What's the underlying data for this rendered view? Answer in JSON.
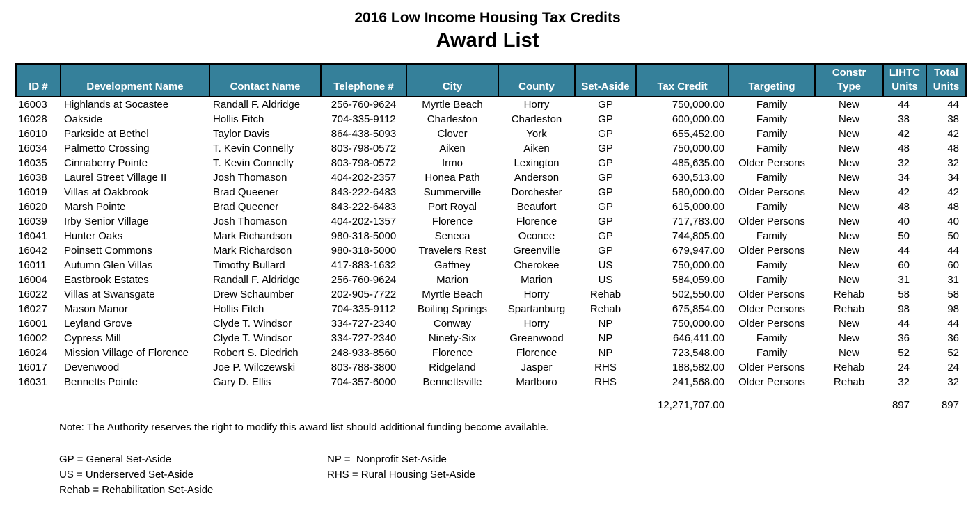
{
  "header": {
    "title": "2016 Low Income Housing Tax Credits",
    "subtitle": "Award List"
  },
  "colors": {
    "header_bg": "#35809A",
    "header_text": "#FFFFFF",
    "body_text": "#000000"
  },
  "table": {
    "columns": [
      {
        "key": "id",
        "label": "ID #"
      },
      {
        "key": "development_name",
        "label": "Development Name"
      },
      {
        "key": "contact_name",
        "label": "Contact Name"
      },
      {
        "key": "telephone",
        "label": "Telephone #"
      },
      {
        "key": "city",
        "label": "City"
      },
      {
        "key": "county",
        "label": "County"
      },
      {
        "key": "set_aside",
        "label": "Set-Aside"
      },
      {
        "key": "tax_credit",
        "label": "Tax Credit"
      },
      {
        "key": "targeting",
        "label": "Targeting"
      },
      {
        "key": "constr_type",
        "label": "Constr\nType"
      },
      {
        "key": "lihtc_units",
        "label": "LIHTC\nUnits"
      },
      {
        "key": "total_units",
        "label": "Total\nUnits"
      }
    ],
    "rows": [
      [
        "16003",
        "Highlands at Socastee",
        "Randall F. Aldridge",
        "256-760-9624",
        "Myrtle Beach",
        "Horry",
        "GP",
        "750,000.00",
        "Family",
        "New",
        "44",
        "44"
      ],
      [
        "16028",
        "Oakside",
        "Hollis Fitch",
        "704-335-9112",
        "Charleston",
        "Charleston",
        "GP",
        "600,000.00",
        "Family",
        "New",
        "38",
        "38"
      ],
      [
        "16010",
        "Parkside at Bethel",
        "Taylor Davis",
        "864-438-5093",
        "Clover",
        "York",
        "GP",
        "655,452.00",
        "Family",
        "New",
        "42",
        "42"
      ],
      [
        "16034",
        "Palmetto Crossing",
        "T. Kevin Connelly",
        "803-798-0572",
        "Aiken",
        "Aiken",
        "GP",
        "750,000.00",
        "Family",
        "New",
        "48",
        "48"
      ],
      [
        "16035",
        "Cinnaberry Pointe",
        "T. Kevin Connelly",
        "803-798-0572",
        "Irmo",
        "Lexington",
        "GP",
        "485,635.00",
        "Older Persons",
        "New",
        "32",
        "32"
      ],
      [
        "16038",
        "Laurel Street Village II",
        "Josh Thomason",
        "404-202-2357",
        "Honea Path",
        "Anderson",
        "GP",
        "630,513.00",
        "Family",
        "New",
        "34",
        "34"
      ],
      [
        "16019",
        "Villas at Oakbrook",
        "Brad Queener",
        "843-222-6483",
        "Summerville",
        "Dorchester",
        "GP",
        "580,000.00",
        "Older Persons",
        "New",
        "42",
        "42"
      ],
      [
        "16020",
        "Marsh Pointe",
        "Brad Queener",
        "843-222-6483",
        "Port Royal",
        "Beaufort",
        "GP",
        "615,000.00",
        "Family",
        "New",
        "48",
        "48"
      ],
      [
        "16039",
        "Irby Senior Village",
        "Josh Thomason",
        "404-202-1357",
        "Florence",
        "Florence",
        "GP",
        "717,783.00",
        "Older Persons",
        "New",
        "40",
        "40"
      ],
      [
        "16041",
        "Hunter Oaks",
        "Mark Richardson",
        "980-318-5000",
        "Seneca",
        "Oconee",
        "GP",
        "744,805.00",
        "Family",
        "New",
        "50",
        "50"
      ],
      [
        "16042",
        "Poinsett Commons",
        "Mark Richardson",
        "980-318-5000",
        "Travelers Rest",
        "Greenville",
        "GP",
        "679,947.00",
        "Older Persons",
        "New",
        "44",
        "44"
      ],
      [
        "16011",
        "Autumn Glen Villas",
        "Timothy Bullard",
        "417-883-1632",
        "Gaffney",
        "Cherokee",
        "US",
        "750,000.00",
        "Family",
        "New",
        "60",
        "60"
      ],
      [
        "16004",
        "Eastbrook Estates",
        "Randall F. Aldridge",
        "256-760-9624",
        "Marion",
        "Marion",
        "US",
        "584,059.00",
        "Family",
        "New",
        "31",
        "31"
      ],
      [
        "16022",
        "Villas at Swansgate",
        "Drew Schaumber",
        "202-905-7722",
        "Myrtle Beach",
        "Horry",
        "Rehab",
        "502,550.00",
        "Older Persons",
        "Rehab",
        "58",
        "58"
      ],
      [
        "16027",
        "Mason Manor",
        "Hollis Fitch",
        "704-335-9112",
        "Boiling Springs",
        "Spartanburg",
        "Rehab",
        "675,854.00",
        "Older Persons",
        "Rehab",
        "98",
        "98"
      ],
      [
        "16001",
        "Leyland Grove",
        "Clyde T. Windsor",
        "334-727-2340",
        "Conway",
        "Horry",
        "NP",
        "750,000.00",
        "Older Persons",
        "New",
        "44",
        "44"
      ],
      [
        "16002",
        "Cypress Mill",
        "Clyde T. Windsor",
        "334-727-2340",
        "Ninety-Six",
        "Greenwood",
        "NP",
        "646,411.00",
        "Family",
        "New",
        "36",
        "36"
      ],
      [
        "16024",
        "Mission Village of Florence",
        "Robert S. Diedrich",
        "248-933-8560",
        "Florence",
        "Florence",
        "NP",
        "723,548.00",
        "Family",
        "New",
        "52",
        "52"
      ],
      [
        "16017",
        "Devenwood",
        "Joe P. Wilczewski",
        "803-788-3800",
        "Ridgeland",
        "Jasper",
        "RHS",
        "188,582.00",
        "Older Persons",
        "Rehab",
        "24",
        "24"
      ],
      [
        "16031",
        "Bennetts Pointe",
        "Gary D. Ellis",
        "704-357-6000",
        "Bennettsville",
        "Marlboro",
        "RHS",
        "241,568.00",
        "Older Persons",
        "Rehab",
        "32",
        "32"
      ]
    ],
    "totals": {
      "tax_credit": "12,271,707.00",
      "lihtc_units": "897",
      "total_units": "897"
    }
  },
  "note": "Note: The Authority reserves the right to modify this award list should additional funding become available.",
  "legend": {
    "rows": [
      [
        "GP = General Set-Aside",
        "NP =  Nonprofit Set-Aside"
      ],
      [
        "US = Underserved Set-Aside",
        "RHS = Rural Housing Set-Aside"
      ],
      [
        "Rehab = Rehabilitation Set-Aside",
        ""
      ]
    ]
  }
}
